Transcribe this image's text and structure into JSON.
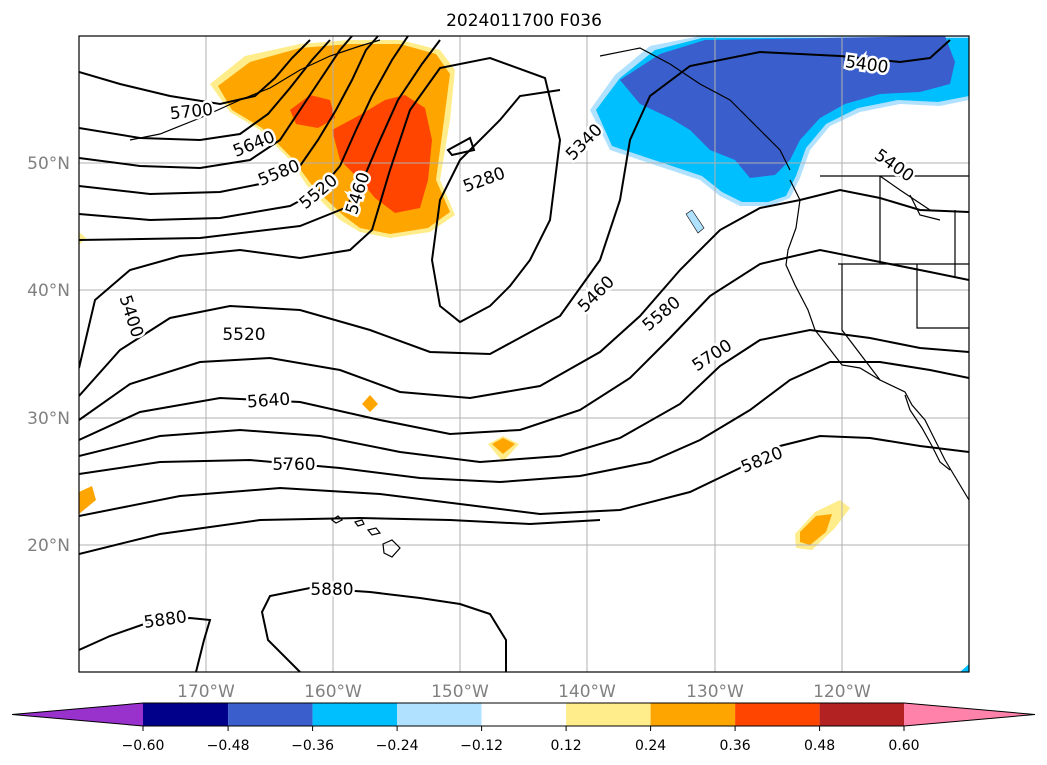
{
  "title": "2024011700 F036",
  "lat_ticks": [
    "50°N",
    "40°N",
    "30°N",
    "20°N"
  ],
  "lon_ticks": [
    "170°W",
    "160°W",
    "150°W",
    "140°W",
    "130°W",
    "120°W"
  ],
  "contour_labels": [
    "5700",
    "5640",
    "5580",
    "5520",
    "5460",
    "5280",
    "5340",
    "5400",
    "5400",
    "5400",
    "5520",
    "5460",
    "5580",
    "5700",
    "5640",
    "5760",
    "5820",
    "5880",
    "5880"
  ],
  "colorbar": {
    "ticks": [
      "−0.60",
      "−0.48",
      "−0.36",
      "−0.24",
      "−0.12",
      "0.12",
      "0.24",
      "0.36",
      "0.48",
      "0.60"
    ],
    "colors": [
      "#9932cc",
      "#00008b",
      "#3a5fcd",
      "#00bfff",
      "#b0e2ff",
      "#ffffff",
      "#ffec8b",
      "#ffa500",
      "#ff4500",
      "#b22222",
      "#ff82ab"
    ]
  },
  "color_fills": {
    "positive_yellow": "#ffec8b",
    "positive_orange": "#ffa500",
    "positive_red": "#ff4500",
    "negative_lightblue": "#b0e2ff",
    "negative_blue": "#00bfff",
    "negative_royal": "#3a5fcd"
  }
}
